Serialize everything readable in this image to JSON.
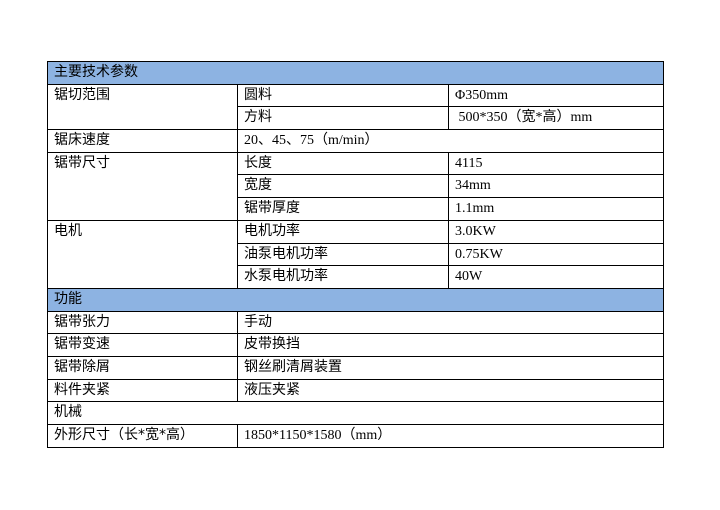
{
  "sections": [
    {
      "title": "主要技术参数"
    },
    {
      "title": "功能"
    },
    {
      "title": "机械"
    }
  ],
  "params": {
    "cut_range": {
      "label": "锯切范围",
      "rows": [
        {
          "k": "圆料",
          "v": "Φ350mm"
        },
        {
          "k": "方料",
          "v": " 500*350（宽*高）mm"
        }
      ]
    },
    "bed_speed": {
      "label": "锯床速度",
      "v": "20、45、75（m/min）"
    },
    "blade_size": {
      "label": "锯带尺寸",
      "rows": [
        {
          "k": "长度",
          "v": "4115"
        },
        {
          "k": "宽度",
          "v": "34mm"
        },
        {
          "k": "锯带厚度",
          "v": "1.1mm"
        }
      ]
    },
    "motor": {
      "label": "电机",
      "rows": [
        {
          "k": "电机功率",
          "v": "3.0KW"
        },
        {
          "k": "油泵电机功率",
          "v": "0.75KW"
        },
        {
          "k": "水泵电机功率",
          "v": "40W"
        }
      ]
    }
  },
  "functions": [
    {
      "k": "锯带张力",
      "v": "手动"
    },
    {
      "k": "锯带变速",
      "v": "皮带换挡"
    },
    {
      "k": "锯带除屑",
      "v": "钢丝刷清屑装置"
    },
    {
      "k": "料件夹紧",
      "v": "液压夹紧"
    }
  ],
  "mechanical": {
    "k": "外形尺寸（长*宽*高）",
    "v": "1850*1150*1580（mm）"
  },
  "colors": {
    "section_bg": "#8db3e2"
  }
}
